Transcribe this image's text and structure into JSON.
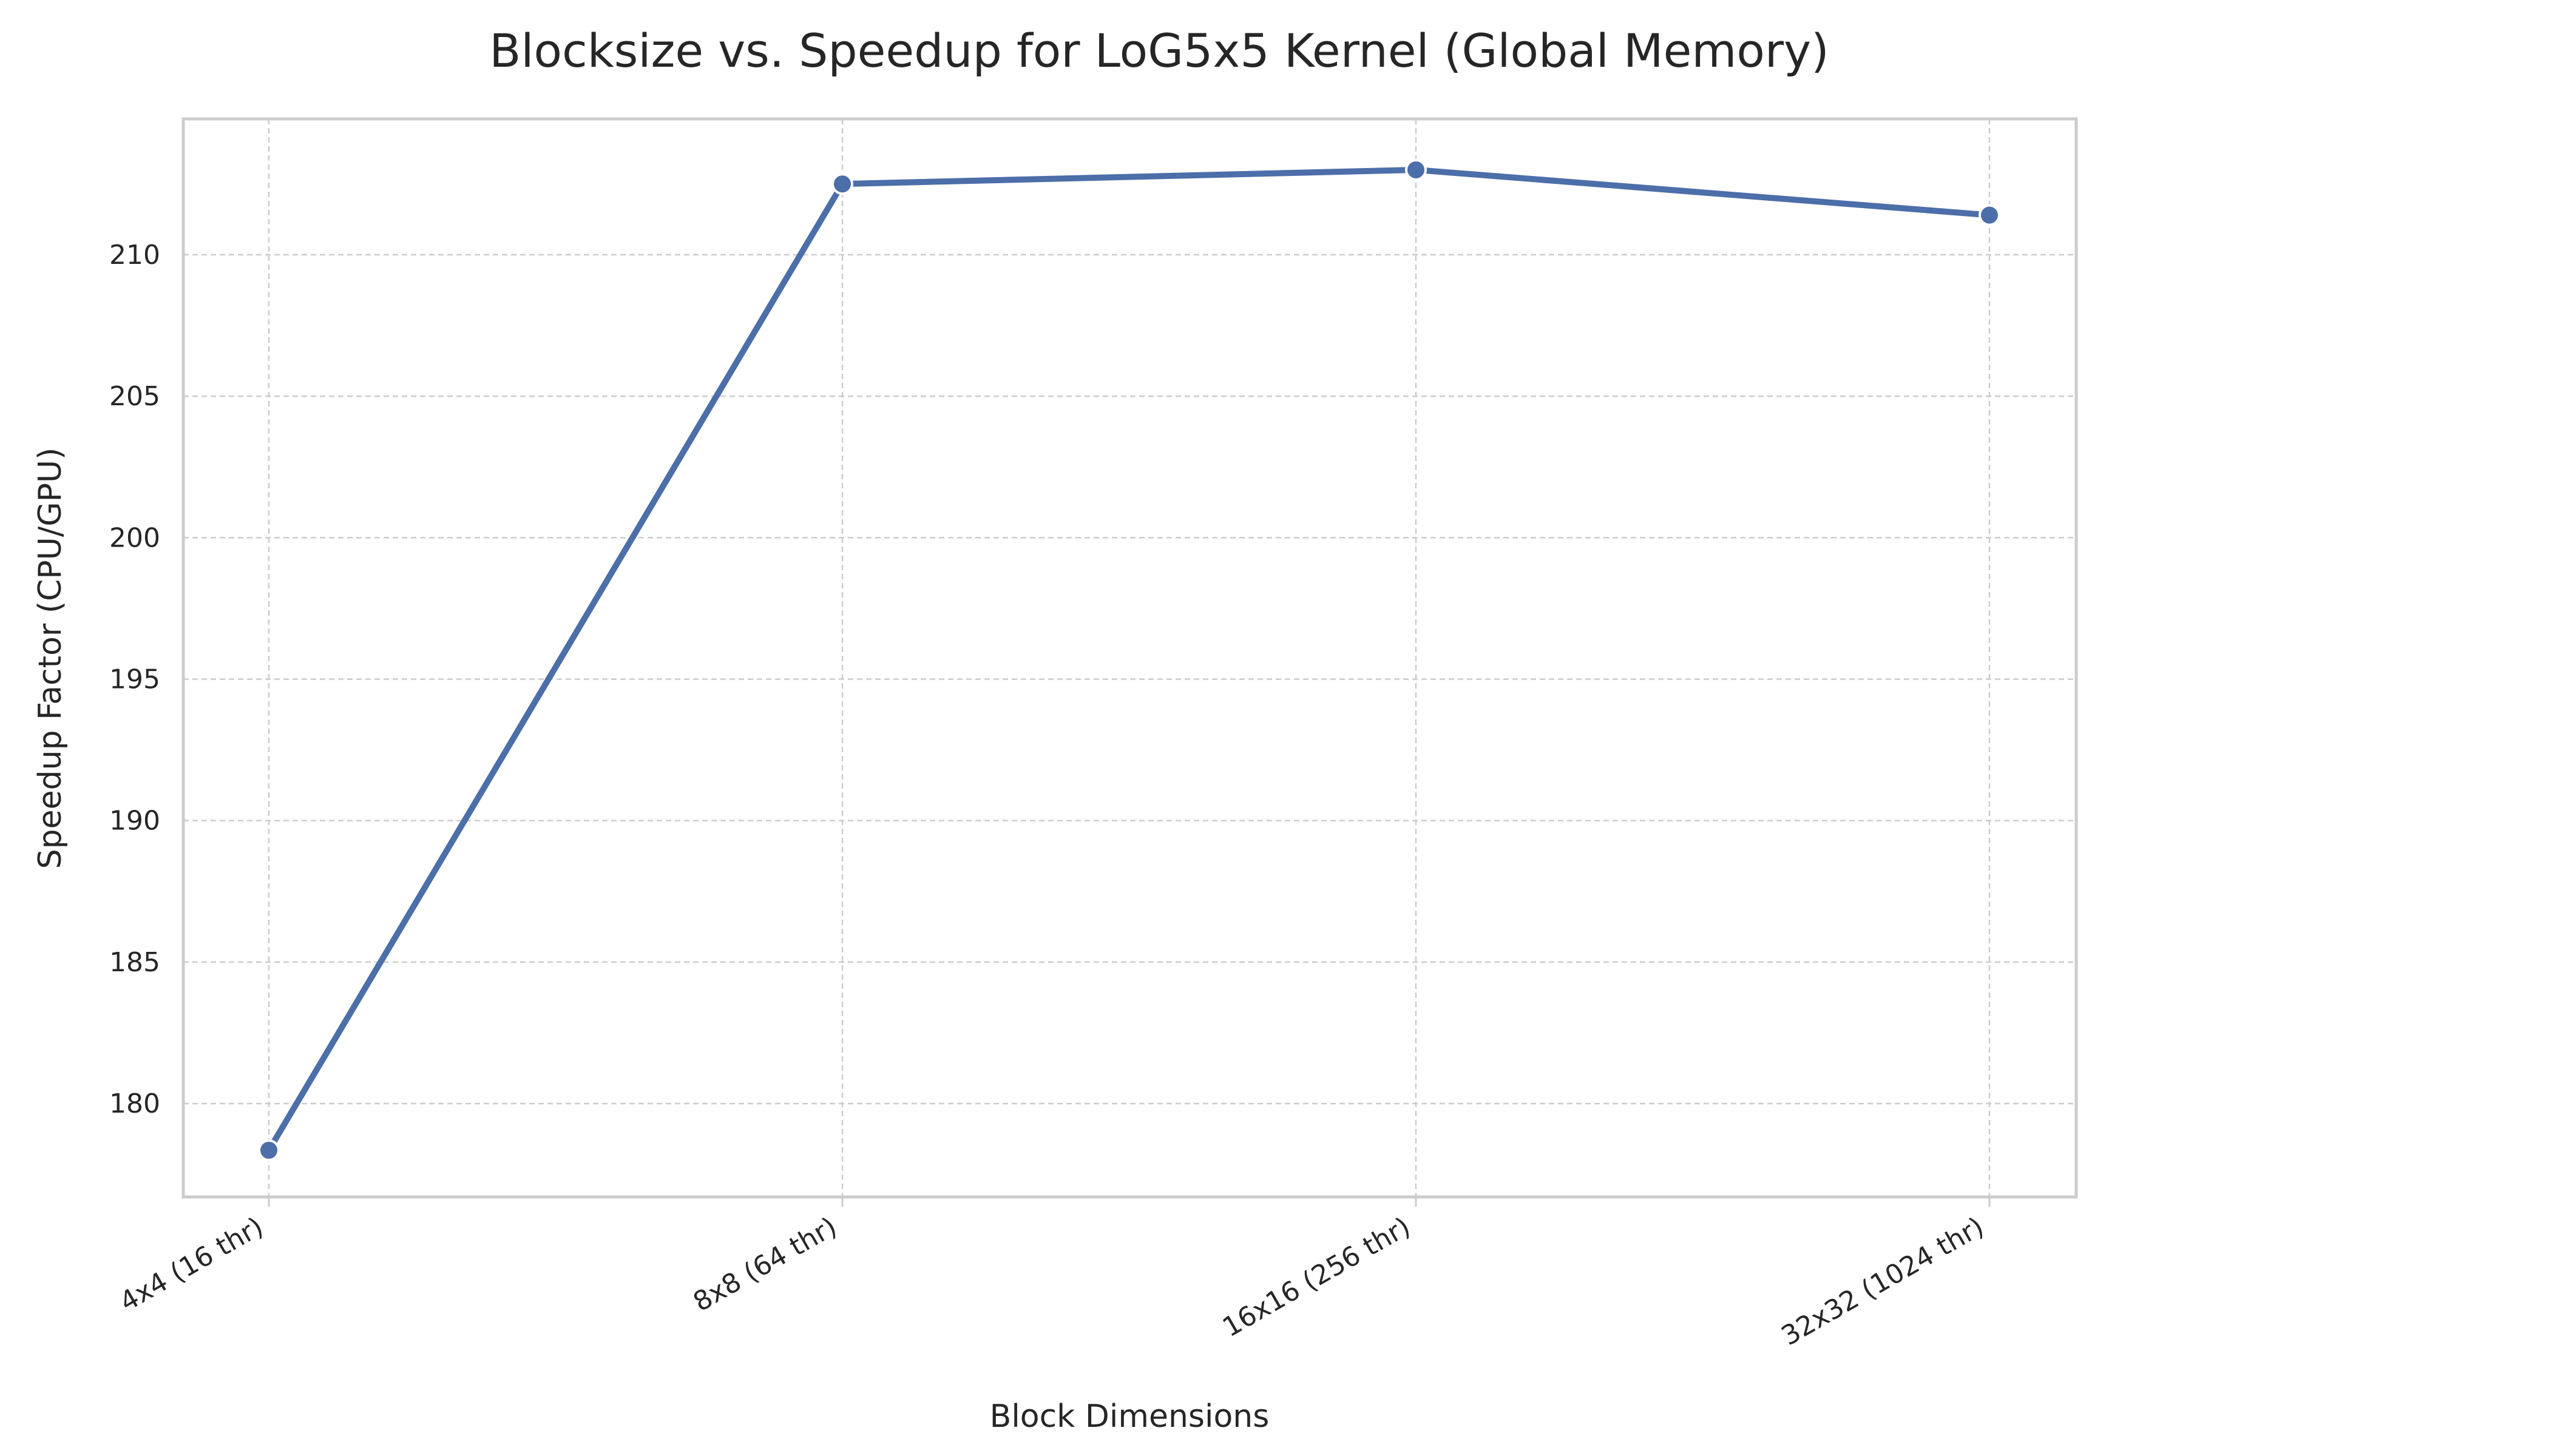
{
  "chart_data": {
    "type": "line",
    "title": "Blocksize vs. Speedup for LoG5x5 Kernel (Global Memory)",
    "xlabel": "Block Dimensions",
    "ylabel": "Speedup Factor (CPU/GPU)",
    "categories": [
      "4x4 (16 thr)",
      "8x8 (64 thr)",
      "16x16 (256 thr)",
      "32x32 (1024 thr)"
    ],
    "series": [
      {
        "values": [
          178.35,
          212.5,
          213.0,
          211.4
        ],
        "color": "#4c6ea9",
        "marker": "circle"
      }
    ],
    "ylim": [
      176.7,
      214.8
    ],
    "yticks": [
      180,
      185,
      190,
      195,
      200,
      205,
      210
    ],
    "grid": true,
    "legend": "none"
  }
}
